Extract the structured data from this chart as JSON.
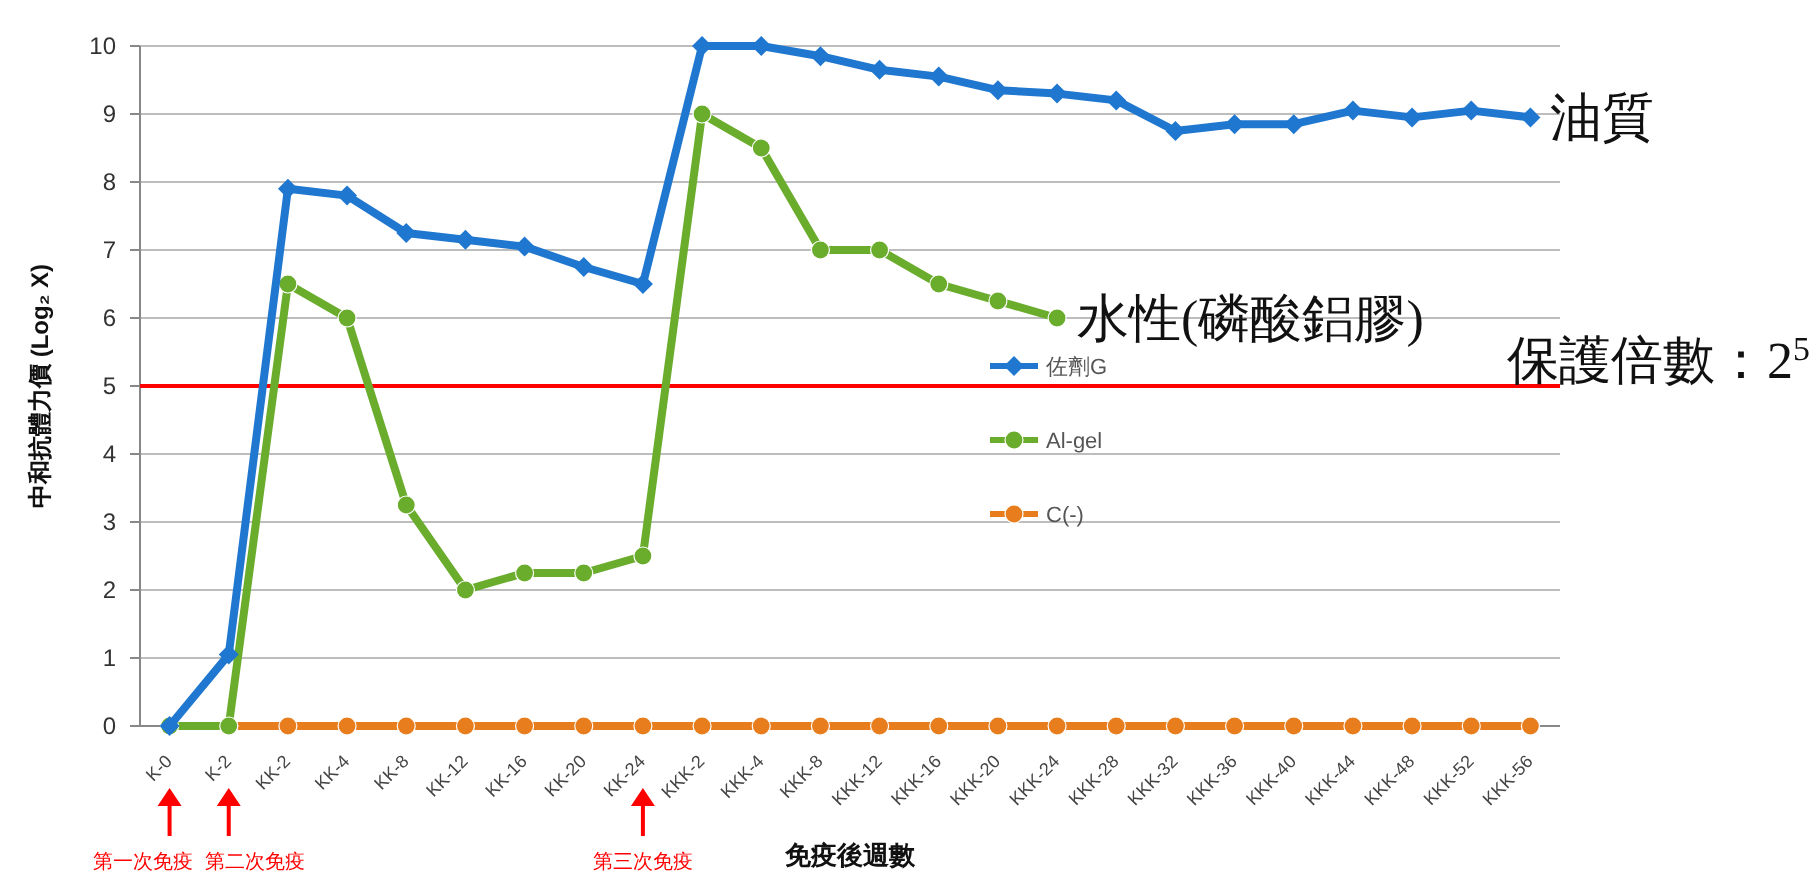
{
  "chart_data": {
    "type": "line",
    "categories": [
      "K-0",
      "K-2",
      "KK-2",
      "KK-4",
      "KK-8",
      "KK-12",
      "KK-16",
      "KK-20",
      "KK-24",
      "KKK-2",
      "KKK-4",
      "KKK-8",
      "KKK-12",
      "KKK-16",
      "KKK-20",
      "KKK-24",
      "KKK-28",
      "KKK-32",
      "KKK-36",
      "KKK-40",
      "KKK-44",
      "KKK-48",
      "KKK-52",
      "KKK-56"
    ],
    "series": [
      {
        "name": "佐劑G",
        "color": "#1f77d0",
        "marker": "diamond",
        "values": [
          0,
          1.05,
          7.9,
          7.8,
          7.25,
          7.15,
          7.05,
          6.75,
          6.5,
          10,
          10,
          9.85,
          9.65,
          9.55,
          9.35,
          9.3,
          9.2,
          8.75,
          8.85,
          8.85,
          9.05,
          8.95,
          9.05,
          8.95
        ]
      },
      {
        "name": "Al-gel",
        "color": "#6aac2c",
        "marker": "circle",
        "values": [
          0,
          0,
          6.5,
          6,
          3.25,
          2,
          2.25,
          2.25,
          2.5,
          9,
          8.5,
          7,
          7,
          6.5,
          6.25,
          6,
          null,
          null,
          null,
          null,
          null,
          null,
          null,
          null
        ]
      },
      {
        "name": "C(-)",
        "color": "#e87d1e",
        "marker": "circle",
        "values": [
          0,
          0,
          0,
          0,
          0,
          0,
          0,
          0,
          0,
          0,
          0,
          0,
          0,
          0,
          0,
          0,
          0,
          0,
          0,
          0,
          0,
          0,
          0,
          0
        ]
      }
    ],
    "xlabel": "免疫後週數",
    "ylabel": "中和抗體力價 (Log₂ X)",
    "ylim": [
      0,
      10
    ],
    "yticks": [
      0,
      1,
      2,
      3,
      4,
      5,
      6,
      7,
      8,
      9,
      10
    ],
    "grid": "y",
    "legend": "right",
    "line_style": "solid",
    "ref_lines": [
      {
        "axis": "y",
        "value": 5,
        "label": "保護倍數：2$^{5}$",
        "color": "#ff0000"
      }
    ],
    "annotations": [
      {
        "text": "油質",
        "x": "KKK-56",
        "y": 8.95
      },
      {
        "text": "水性(磷酸鋁膠)",
        "x": "KKK-24",
        "y": 6
      },
      "第一次免疫",
      "第二次免疫",
      "第三次免疫"
    ]
  }
}
